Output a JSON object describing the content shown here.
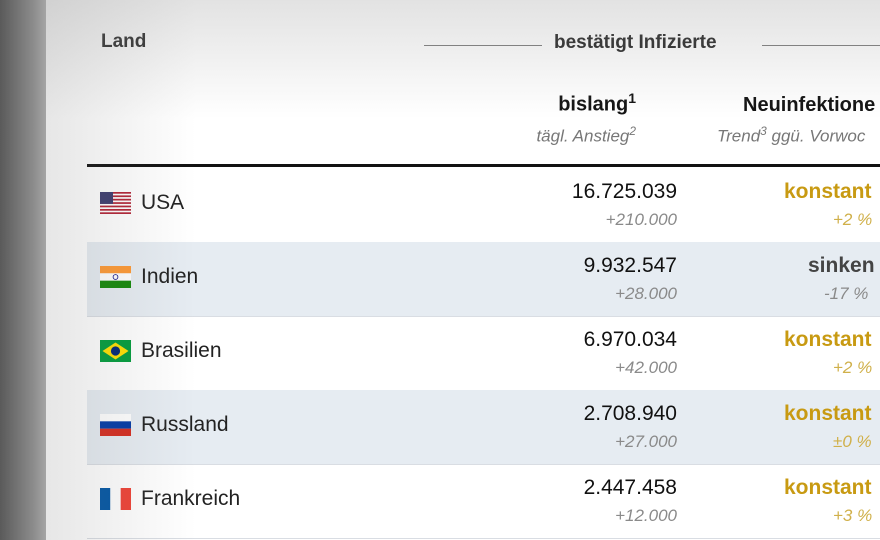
{
  "table": {
    "col_country_label": "Land",
    "group_label": "bestätigt Infizierte",
    "col_total": {
      "title": "bislang",
      "title_note": "1",
      "sub": "tägl. Anstieg",
      "sub_note": "2"
    },
    "col_trend": {
      "title": "Neuinfektione",
      "title_note": "",
      "sub_pre": "Trend",
      "sub_note": "3",
      "sub_post": " ggü. Vorwoc"
    },
    "rows": [
      {
        "country": "USA",
        "flag": "us-flag-icon",
        "total": "16.725.039",
        "rise": "+210.000",
        "trend": "konstant",
        "trend_pct": "+2 %",
        "trend_color": "#c89a12"
      },
      {
        "country": "Indien",
        "flag": "india-flag-icon",
        "total": "9.932.547",
        "rise": "+28.000",
        "trend": "sinken",
        "trend_pct": "-17 %",
        "trend_color": "#444444"
      },
      {
        "country": "Brasilien",
        "flag": "brazil-flag-icon",
        "total": "6.970.034",
        "rise": "+42.000",
        "trend": "konstant",
        "trend_pct": "+2 %",
        "trend_color": "#c89a12"
      },
      {
        "country": "Russland",
        "flag": "russia-flag-icon",
        "total": "2.708.940",
        "rise": "+27.000",
        "trend": "konstant",
        "trend_pct": "±0 %",
        "trend_color": "#c89a12"
      },
      {
        "country": "Frankreich",
        "flag": "france-flag-icon",
        "total": "2.447.458",
        "rise": "+12.000",
        "trend": "konstant",
        "trend_pct": "+3 %",
        "trend_color": "#c89a12"
      }
    ]
  }
}
